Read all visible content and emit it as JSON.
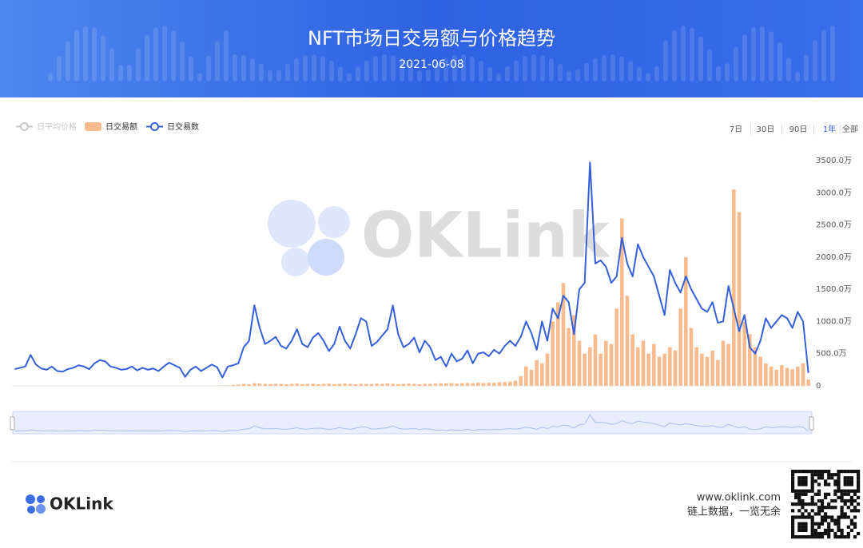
{
  "header": {
    "title": "NFT市场日交易额与价格趋势",
    "date": "2021-06-08"
  },
  "chart_data": {
    "type": "bar-line",
    "categories": [
      null,
      null,
      null,
      null,
      null,
      null,
      null,
      null,
      null,
      null,
      null,
      null,
      null,
      null,
      null,
      null,
      null,
      null,
      null,
      null,
      null,
      null,
      null,
      null,
      null,
      null,
      null,
      null,
      null,
      null,
      null,
      null,
      null,
      null,
      null,
      null,
      null,
      null,
      null,
      null,
      null,
      null,
      null,
      null,
      null,
      null,
      null,
      null,
      null,
      null,
      null,
      null,
      null,
      null,
      null,
      null,
      null,
      null,
      null,
      null,
      null,
      null,
      null,
      null,
      null,
      null,
      null,
      null,
      null,
      null,
      null,
      null,
      null,
      null,
      null,
      null,
      null,
      null,
      null,
      null,
      null,
      null,
      null,
      null,
      null,
      null,
      null,
      null,
      null,
      null,
      null,
      null,
      null,
      null,
      null,
      null,
      null,
      null,
      null,
      null,
      null,
      null,
      null,
      null,
      null,
      null,
      null,
      null,
      null,
      null,
      null,
      null,
      null,
      null,
      null,
      null,
      null,
      null,
      null,
      null,
      null,
      null,
      null,
      null,
      null,
      null,
      null,
      null,
      null,
      null,
      null,
      null,
      null,
      null,
      null,
      null,
      null,
      null,
      null,
      null,
      null,
      null,
      null,
      null,
      null,
      null,
      null,
      null,
      null,
      null
    ],
    "series": [
      {
        "name": "日平均价格",
        "color": "#c8c8c8",
        "visible": false
      },
      {
        "name": "日交易额",
        "type": "bar",
        "color": "#f9bb8c",
        "values": [
          2,
          3,
          2,
          3,
          2,
          2,
          3,
          2,
          3,
          2,
          2,
          3,
          2,
          2,
          3,
          2,
          3,
          2,
          2,
          3,
          2,
          3,
          2,
          2,
          3,
          2,
          3,
          2,
          2,
          3,
          2,
          3,
          2,
          3,
          2,
          2,
          3,
          3,
          4,
          5,
          8,
          15,
          20,
          30,
          25,
          40,
          35,
          30,
          28,
          32,
          30,
          25,
          30,
          35,
          28,
          30,
          32,
          26,
          30,
          34,
          28,
          30,
          35,
          30,
          26,
          32,
          30,
          28,
          34,
          30,
          36,
          32,
          28,
          30,
          34,
          30,
          26,
          32,
          30,
          35,
          40,
          38,
          42,
          36,
          40,
          45,
          42,
          48,
          44,
          50,
          46,
          55,
          60,
          65,
          80,
          150,
          300,
          250,
          400,
          350,
          500,
          1000,
          1300,
          1600,
          900,
          1100,
          700,
          500,
          600,
          800,
          500,
          700,
          650,
          1200,
          2600,
          1400,
          800,
          600,
          700,
          500,
          650,
          450,
          500,
          600,
          550,
          1200,
          2000,
          900,
          600,
          500,
          450,
          550,
          400,
          700,
          650,
          3050,
          2700,
          1000,
          800,
          600,
          450,
          350,
          300,
          250,
          320,
          280,
          260,
          300,
          350,
          100
        ]
      },
      {
        "name": "日交易数",
        "type": "line",
        "color": "#3560d8",
        "values": [
          260,
          280,
          300,
          480,
          330,
          270,
          250,
          300,
          230,
          220,
          260,
          280,
          320,
          300,
          260,
          350,
          400,
          380,
          300,
          280,
          250,
          260,
          300,
          240,
          280,
          250,
          270,
          230,
          300,
          360,
          320,
          280,
          140,
          250,
          300,
          230,
          280,
          330,
          290,
          130,
          300,
          320,
          350,
          600,
          700,
          1250,
          900,
          650,
          700,
          760,
          620,
          580,
          700,
          880,
          650,
          600,
          750,
          820,
          700,
          540,
          650,
          920,
          700,
          580,
          800,
          1050,
          1000,
          620,
          680,
          780,
          880,
          1250,
          800,
          600,
          650,
          750,
          520,
          700,
          600,
          400,
          450,
          300,
          500,
          380,
          420,
          550,
          350,
          500,
          520,
          460,
          560,
          500,
          620,
          700,
          620,
          760,
          1000,
          820,
          560,
          1000,
          700,
          1200,
          1050,
          1400,
          1300,
          800,
          1500,
          1600,
          3470,
          1900,
          1950,
          1850,
          1600,
          1700,
          2300,
          1900,
          1700,
          2200,
          2000,
          1850,
          1700,
          1400,
          1100,
          1800,
          1600,
          1450,
          1700,
          1500,
          1350,
          1200,
          1150,
          1300,
          980,
          1000,
          1550,
          1200,
          850,
          1100,
          600,
          500,
          700,
          1050,
          900,
          1000,
          1100,
          1050,
          900,
          1150,
          1000,
          200
        ]
      }
    ],
    "ylim": [
      0,
      3500
    ],
    "yticks": [
      0,
      {
        "value": 500,
        "label": "500.0万"
      },
      {
        "value": 1000,
        "label": "1000.0万"
      },
      {
        "value": 1500,
        "label": "1500.0万"
      },
      {
        "value": 2000,
        "label": "2000.0万"
      },
      {
        "value": 2500,
        "label": "2500.0万"
      },
      {
        "value": 3000,
        "label": "3000.0万"
      },
      {
        "value": 3500,
        "label": "3500.0万"
      }
    ],
    "grid": false
  },
  "range_buttons": [
    {
      "label": "7日",
      "active": false
    },
    {
      "label": "30日",
      "active": false
    },
    {
      "label": "90日",
      "active": false
    },
    {
      "label": "1年",
      "active": true
    },
    {
      "label": "全部",
      "active": false
    }
  ],
  "watermark": "OKLink",
  "footer": {
    "brand": "OKLink",
    "url": "www.oklink.com",
    "slogan": "链上数据，一览无余"
  }
}
